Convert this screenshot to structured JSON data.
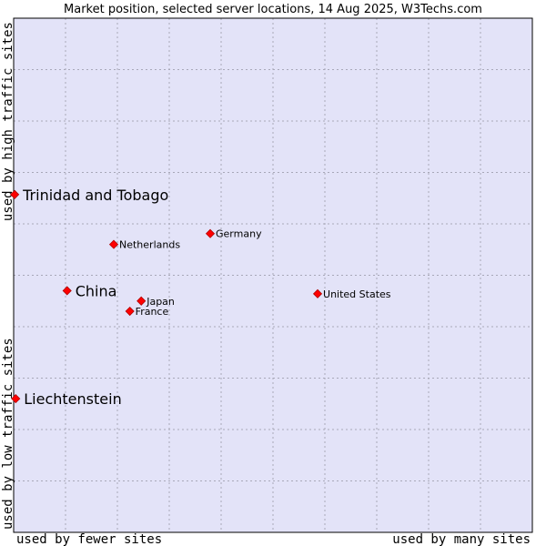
{
  "chart_data": {
    "type": "scatter",
    "title": "Market position, selected server locations, 14 Aug 2025, W3Techs.com",
    "xlabel_left": "used by fewer sites",
    "xlabel_right": "used by many sites",
    "ylabel_bottom": "used by low traffic sites",
    "ylabel_top": "used by high traffic sites",
    "xlim": [
      0,
      100
    ],
    "ylim": [
      0,
      100
    ],
    "grid": true,
    "colors": {
      "plot_bg": "#e3e3f8",
      "grid": "#a8a8b8",
      "point": "#ff0000",
      "point_edge": "#b00000"
    },
    "points": [
      {
        "name": "Trinidad and Tobago",
        "x": 0.2,
        "y": 65.7,
        "emphasis": true
      },
      {
        "name": "Germany",
        "x": 37.9,
        "y": 58.1,
        "emphasis": false
      },
      {
        "name": "Netherlands",
        "x": 19.3,
        "y": 56.0,
        "emphasis": false
      },
      {
        "name": "China",
        "x": 10.3,
        "y": 47.0,
        "emphasis": true
      },
      {
        "name": "United States",
        "x": 58.6,
        "y": 46.4,
        "emphasis": false
      },
      {
        "name": "Japan",
        "x": 24.6,
        "y": 45.0,
        "emphasis": false
      },
      {
        "name": "France",
        "x": 22.4,
        "y": 43.0,
        "emphasis": false
      },
      {
        "name": "Liechtenstein",
        "x": 0.4,
        "y": 26.0,
        "emphasis": true
      }
    ]
  }
}
